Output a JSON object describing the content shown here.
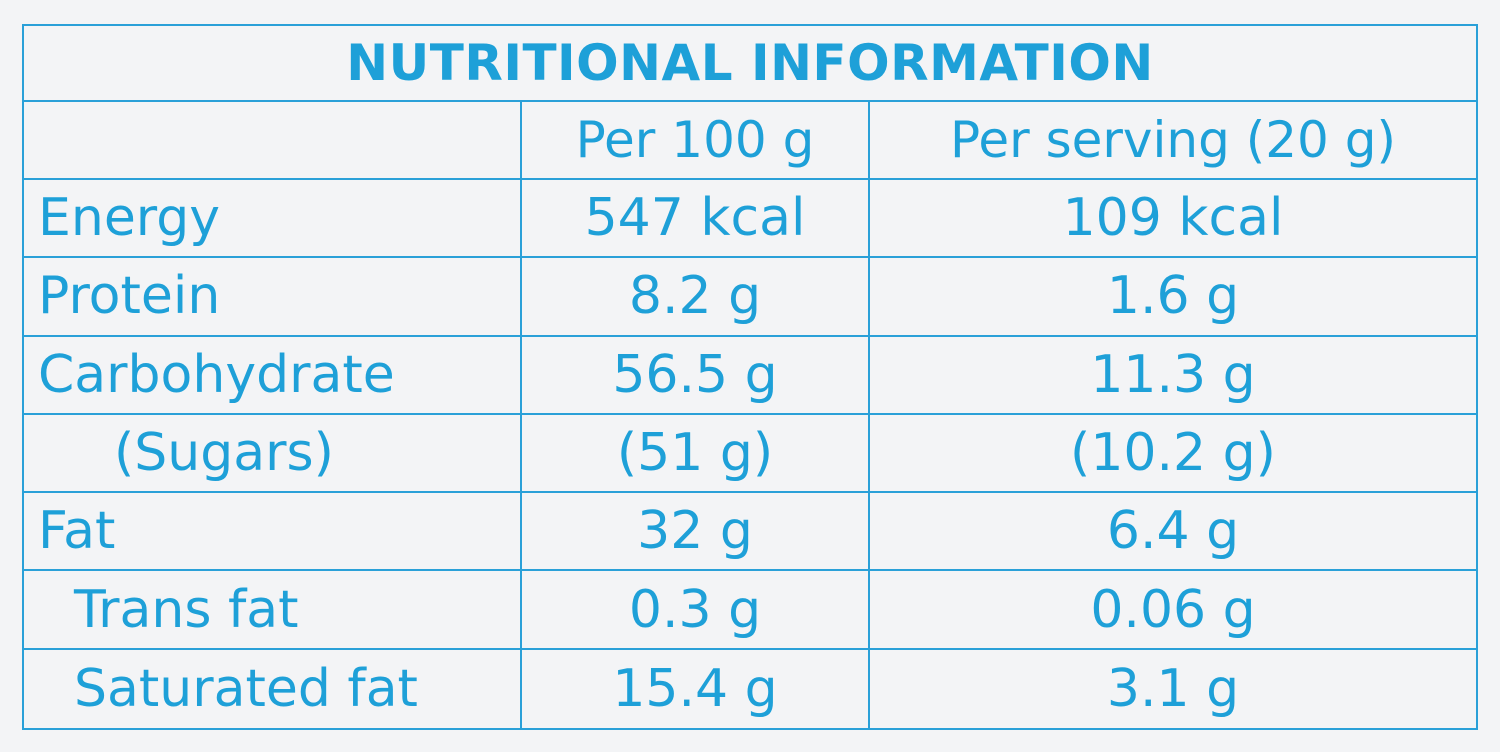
{
  "title": "NUTRITIONAL INFORMATION",
  "columns": {
    "label": "",
    "per_100g": "Per 100 g",
    "per_serving": "Per serving (20 g)"
  },
  "rows": [
    {
      "label": "Energy",
      "per_100g": "547 kcal",
      "per_serving": "109 kcal"
    },
    {
      "label": "Protein",
      "per_100g": "8.2 g",
      "per_serving": "1.6 g"
    },
    {
      "label": "Carbohydrate",
      "per_100g": "56.5 g",
      "per_serving": "11.3 g"
    },
    {
      "label": "(Sugars)",
      "per_100g": "(51 g)",
      "per_serving": "(10.2 g)"
    },
    {
      "label": "Fat",
      "per_100g": "32 g",
      "per_serving": "6.4 g"
    },
    {
      "label": "Trans fat",
      "per_100g": "0.3 g",
      "per_serving": "0.06 g"
    },
    {
      "label": "Saturated fat",
      "per_100g": "15.4 g",
      "per_serving": "3.1 g"
    }
  ],
  "colors": {
    "ink": "#1ea0d8",
    "rule": "#2aa0d8",
    "background": "#f3f4f6"
  }
}
